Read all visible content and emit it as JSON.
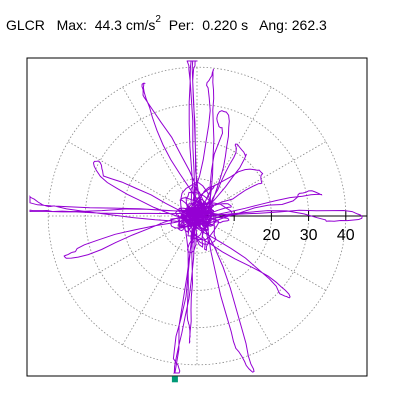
{
  "header": {
    "station": "GLCR",
    "max_label": "Max:",
    "max_value": "44.3 cm/s",
    "max_exponent": "2",
    "per_label": "Per:",
    "per_value": "0.220 s",
    "ang_label": "Ang:",
    "ang_value": "262.3"
  },
  "chart_data": {
    "type": "polar-trace",
    "radial_ticks": [
      20,
      30,
      40
    ],
    "radial_range": [
      0,
      44.3
    ],
    "rings": [
      10,
      20,
      30,
      40
    ],
    "spokes_deg": [
      0,
      30,
      60,
      90,
      120,
      150,
      180,
      210,
      240,
      270,
      300,
      330
    ],
    "grid": true,
    "trace_color": "#9400d3",
    "marker_color": "#009977",
    "peak": {
      "magnitude": 44.3,
      "angle_deg": 262.3
    }
  }
}
